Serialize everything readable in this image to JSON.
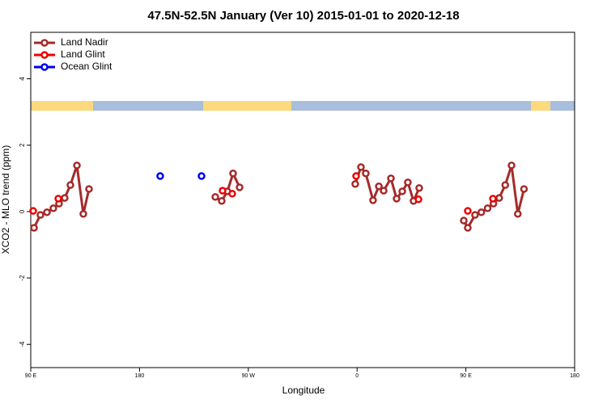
{
  "chart_data": {
    "type": "line",
    "title": "47.5N-52.5N January (Ver 10)   2015-01-01 to 2020-12-18",
    "x_label": "Longitude",
    "y_label": "XCO2 - MLO trend (ppm)",
    "xlim": [
      90,
      540
    ],
    "ylim": [
      -4.7,
      5.4
    ],
    "xticks": [
      {
        "value": 90,
        "label": "90 E"
      },
      180,
      {
        "value": 270,
        "label": "90 W"
      },
      {
        "value": 360,
        "label": "0"
      },
      {
        "value": 450,
        "label": "90 E"
      },
      {
        "value": 540,
        "label": "180"
      }
    ],
    "yticks": [
      -4,
      -2,
      0,
      2,
      4
    ],
    "legend": "top-left",
    "series": [
      {
        "name": "Land Nadir",
        "color": "#a52a2a",
        "connected": true,
        "x": [
          92.7,
          98,
          103.4,
          108.7,
          113.4,
          118.1,
          122.8,
          128.2,
          133.5,
          138.2,
          null,
          242.7,
          248,
          252.7,
          257.4,
          262.8,
          null,
          358.5,
          363.2,
          367.2,
          373.2,
          378,
          382,
          388,
          392.7,
          397.4,
          402,
          406.7,
          411.4,
          null,
          448.3,
          451.6,
          457.6,
          462.8,
          468,
          472.8,
          477.6,
          482.6,
          487.8,
          493,
          498.1
        ],
        "values": [
          -0.49,
          -0.1,
          -0.02,
          0.1,
          0.24,
          0.41,
          0.8,
          1.39,
          -0.07,
          0.68,
          null,
          0.44,
          0.32,
          0.61,
          1.15,
          0.73,
          null,
          0.83,
          1.34,
          1.15,
          0.34,
          0.76,
          0.63,
          1.0,
          0.39,
          0.61,
          0.88,
          0.32,
          0.71,
          null,
          -0.27,
          -0.49,
          -0.1,
          -0.02,
          0.1,
          0.24,
          0.41,
          0.8,
          1.39,
          -0.07,
          0.68
        ]
      },
      {
        "name": "Land Glint",
        "color": "#ee0000",
        "connected": false,
        "x": [
          92,
          112.8,
          248.7,
          256.7,
          359.2,
          410.8,
          451.6,
          472.4
        ],
        "values": [
          0.02,
          0.39,
          0.63,
          0.54,
          1.07,
          0.37,
          0.02,
          0.39
        ]
      },
      {
        "name": "Ocean Glint",
        "color": "#0000ee",
        "connected": false,
        "x": [
          197.1,
          231.3
        ],
        "values": [
          1.07,
          1.07
        ]
      }
    ]
  }
}
